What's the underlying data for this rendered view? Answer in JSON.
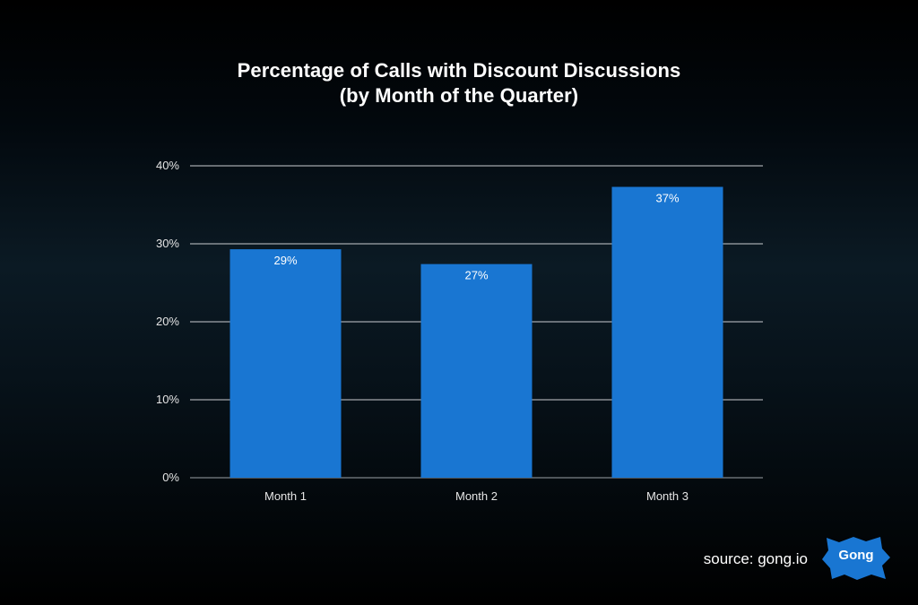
{
  "chart_data": {
    "type": "bar",
    "title": "Percentage of Calls with Discount Discussions",
    "subtitle": "(by Month of the Quarter)",
    "categories": [
      "Month 1",
      "Month 2",
      "Month 3"
    ],
    "values": [
      29.3,
      27.4,
      37.3
    ],
    "data_labels": [
      "29%",
      "27%",
      "37%"
    ],
    "xlabel": "",
    "ylabel": "",
    "ylim": [
      0,
      40
    ],
    "yticks": [
      0,
      10,
      20,
      30,
      40
    ],
    "ytick_labels": [
      "0%",
      "10%",
      "20%",
      "30%",
      "40%"
    ],
    "grid": true,
    "legend": "none",
    "bar_color": "#1976d2"
  },
  "footer": {
    "source": "source: gong.io",
    "logo_text": "Gong",
    "logo_color": "#1976d2"
  }
}
